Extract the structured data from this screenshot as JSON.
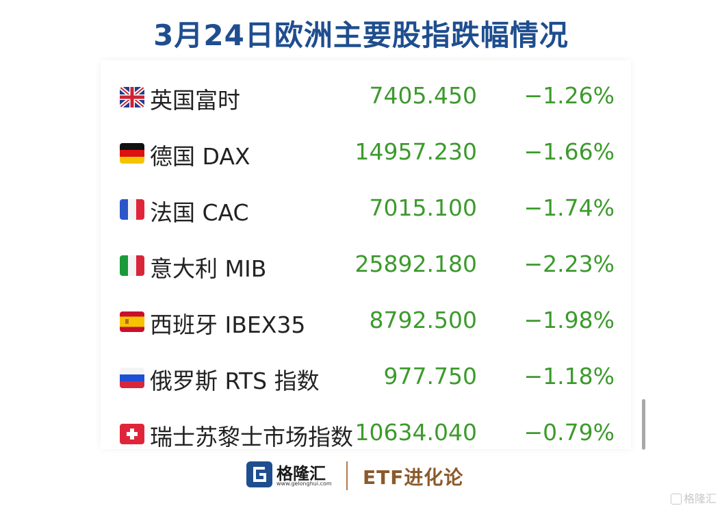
{
  "title": "3月24日欧洲主要股指跌幅情况",
  "rows": [
    {
      "flag": "uk-flag-icon",
      "name": "英国富时",
      "value": "7405.450",
      "change": "−1.26%"
    },
    {
      "flag": "germany-flag-icon",
      "name": "德国 DAX",
      "value": "14957.230",
      "change": "−1.66%"
    },
    {
      "flag": "france-flag-icon",
      "name": "法国 CAC",
      "value": "7015.100",
      "change": "−1.74%"
    },
    {
      "flag": "italy-flag-icon",
      "name": "意大利 MIB",
      "value": "25892.180",
      "change": "−2.23%"
    },
    {
      "flag": "spain-flag-icon",
      "name": "西班牙 IBEX35",
      "value": "8792.500",
      "change": "−1.98%"
    },
    {
      "flag": "russia-flag-icon",
      "name": "俄罗斯 RTS 指数",
      "value": "977.750",
      "change": "−1.18%"
    },
    {
      "flag": "switzerland-flag-icon",
      "name": "瑞士苏黎士市场指数",
      "value": "10634.040",
      "change": "−0.79%"
    }
  ],
  "footer": {
    "logo_text": "格隆汇",
    "logo_url": "www.gelonghui.com",
    "brand": "ETF进化论"
  },
  "watermark": "格隆汇",
  "colors": {
    "title": "#1f4e8f",
    "value": "#3c9a2c",
    "name": "#222222",
    "brand": "#8b5a2b"
  }
}
